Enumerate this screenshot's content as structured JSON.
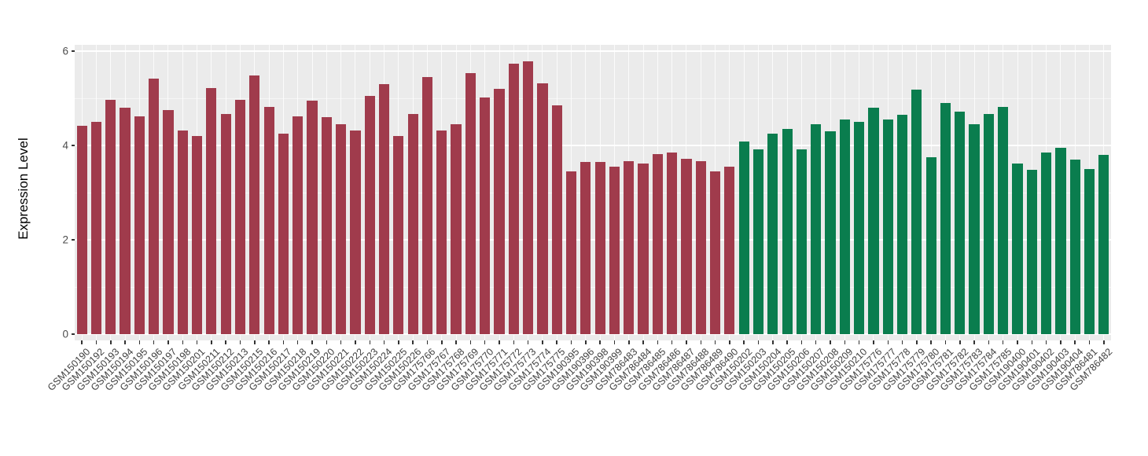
{
  "chart_data": {
    "type": "bar",
    "title": "",
    "xlabel": "",
    "ylabel": "Expression Level",
    "ylim": [
      0,
      6
    ],
    "yticks": [
      0,
      2,
      4,
      6
    ],
    "yticks_minor": [
      1,
      3,
      5
    ],
    "legend": "none",
    "panel_background": "#EBEBEB",
    "grid_color": "#FFFFFF",
    "tick_color": "#333333",
    "group_colors": {
      "group1": "#A03B4C",
      "group2": "#0A7D4E"
    },
    "bars": [
      {
        "label": "GSM150190",
        "value": 4.42,
        "group": "group1"
      },
      {
        "label": "GSM150192",
        "value": 4.5,
        "group": "group1"
      },
      {
        "label": "GSM150193",
        "value": 4.97,
        "group": "group1"
      },
      {
        "label": "GSM150194",
        "value": 4.8,
        "group": "group1"
      },
      {
        "label": "GSM150195",
        "value": 4.62,
        "group": "group1"
      },
      {
        "label": "GSM150196",
        "value": 5.42,
        "group": "group1"
      },
      {
        "label": "GSM150197",
        "value": 4.75,
        "group": "group1"
      },
      {
        "label": "GSM150198",
        "value": 4.32,
        "group": "group1"
      },
      {
        "label": "GSM150201",
        "value": 4.2,
        "group": "group1"
      },
      {
        "label": "GSM150211",
        "value": 5.22,
        "group": "group1"
      },
      {
        "label": "GSM150212",
        "value": 4.67,
        "group": "group1"
      },
      {
        "label": "GSM150213",
        "value": 4.97,
        "group": "group1"
      },
      {
        "label": "GSM150215",
        "value": 5.48,
        "group": "group1"
      },
      {
        "label": "GSM150216",
        "value": 4.82,
        "group": "group1"
      },
      {
        "label": "GSM150217",
        "value": 4.25,
        "group": "group1"
      },
      {
        "label": "GSM150218",
        "value": 4.62,
        "group": "group1"
      },
      {
        "label": "GSM150219",
        "value": 4.95,
        "group": "group1"
      },
      {
        "label": "GSM150220",
        "value": 4.6,
        "group": "group1"
      },
      {
        "label": "GSM150221",
        "value": 4.45,
        "group": "group1"
      },
      {
        "label": "GSM150222",
        "value": 4.32,
        "group": "group1"
      },
      {
        "label": "GSM150223",
        "value": 5.05,
        "group": "group1"
      },
      {
        "label": "GSM150224",
        "value": 5.3,
        "group": "group1"
      },
      {
        "label": "GSM150225",
        "value": 4.2,
        "group": "group1"
      },
      {
        "label": "GSM150226",
        "value": 4.67,
        "group": "group1"
      },
      {
        "label": "GSM175766",
        "value": 5.45,
        "group": "group1"
      },
      {
        "label": "GSM175767",
        "value": 4.32,
        "group": "group1"
      },
      {
        "label": "GSM175768",
        "value": 4.45,
        "group": "group1"
      },
      {
        "label": "GSM175769",
        "value": 5.53,
        "group": "group1"
      },
      {
        "label": "GSM175770",
        "value": 5.02,
        "group": "group1"
      },
      {
        "label": "GSM175771",
        "value": 5.2,
        "group": "group1"
      },
      {
        "label": "GSM175772",
        "value": 5.73,
        "group": "group1"
      },
      {
        "label": "GSM175773",
        "value": 5.78,
        "group": "group1"
      },
      {
        "label": "GSM175774",
        "value": 5.32,
        "group": "group1"
      },
      {
        "label": "GSM175775",
        "value": 4.85,
        "group": "group1"
      },
      {
        "label": "GSM190395",
        "value": 3.45,
        "group": "group1"
      },
      {
        "label": "GSM190396",
        "value": 3.65,
        "group": "group1"
      },
      {
        "label": "GSM190398",
        "value": 3.65,
        "group": "group1"
      },
      {
        "label": "GSM190399",
        "value": 3.55,
        "group": "group1"
      },
      {
        "label": "GSM786483",
        "value": 3.67,
        "group": "group1"
      },
      {
        "label": "GSM786484",
        "value": 3.62,
        "group": "group1"
      },
      {
        "label": "GSM786485",
        "value": 3.82,
        "group": "group1"
      },
      {
        "label": "GSM786486",
        "value": 3.85,
        "group": "group1"
      },
      {
        "label": "GSM786487",
        "value": 3.72,
        "group": "group1"
      },
      {
        "label": "GSM786488",
        "value": 3.67,
        "group": "group1"
      },
      {
        "label": "GSM786489",
        "value": 3.45,
        "group": "group1"
      },
      {
        "label": "GSM786490",
        "value": 3.55,
        "group": "group1"
      },
      {
        "label": "GSM150202",
        "value": 4.08,
        "group": "group2"
      },
      {
        "label": "GSM150203",
        "value": 3.92,
        "group": "group2"
      },
      {
        "label": "GSM150204",
        "value": 4.25,
        "group": "group2"
      },
      {
        "label": "GSM150205",
        "value": 4.35,
        "group": "group2"
      },
      {
        "label": "GSM150206",
        "value": 3.92,
        "group": "group2"
      },
      {
        "label": "GSM150207",
        "value": 4.45,
        "group": "group2"
      },
      {
        "label": "GSM150208",
        "value": 4.3,
        "group": "group2"
      },
      {
        "label": "GSM150209",
        "value": 4.55,
        "group": "group2"
      },
      {
        "label": "GSM150210",
        "value": 4.5,
        "group": "group2"
      },
      {
        "label": "GSM175776",
        "value": 4.8,
        "group": "group2"
      },
      {
        "label": "GSM175777",
        "value": 4.55,
        "group": "group2"
      },
      {
        "label": "GSM175778",
        "value": 4.65,
        "group": "group2"
      },
      {
        "label": "GSM175779",
        "value": 5.18,
        "group": "group2"
      },
      {
        "label": "GSM175780",
        "value": 3.75,
        "group": "group2"
      },
      {
        "label": "GSM175781",
        "value": 4.9,
        "group": "group2"
      },
      {
        "label": "GSM175782",
        "value": 4.72,
        "group": "group2"
      },
      {
        "label": "GSM175783",
        "value": 4.45,
        "group": "group2"
      },
      {
        "label": "GSM175784",
        "value": 4.67,
        "group": "group2"
      },
      {
        "label": "GSM175785",
        "value": 4.82,
        "group": "group2"
      },
      {
        "label": "GSM190400",
        "value": 3.62,
        "group": "group2"
      },
      {
        "label": "GSM190401",
        "value": 3.48,
        "group": "group2"
      },
      {
        "label": "GSM190402",
        "value": 3.85,
        "group": "group2"
      },
      {
        "label": "GSM190403",
        "value": 3.95,
        "group": "group2"
      },
      {
        "label": "GSM190404",
        "value": 3.7,
        "group": "group2"
      },
      {
        "label": "GSM786481",
        "value": 3.5,
        "group": "group2"
      },
      {
        "label": "GSM786482",
        "value": 3.8,
        "group": "group2"
      }
    ]
  }
}
